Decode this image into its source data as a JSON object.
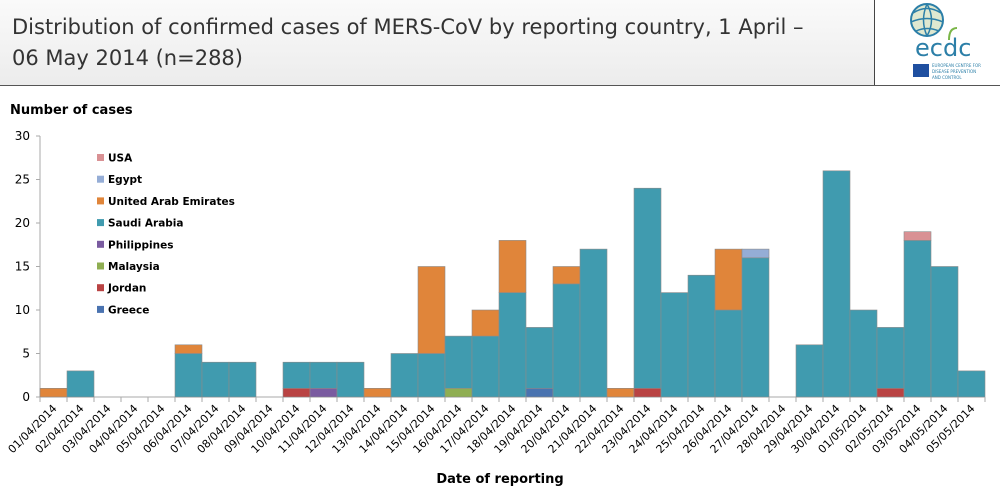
{
  "header": {
    "title": "Distribution of confirmed cases of MERS-CoV by reporting country, 1 April – 06 May 2014 (n=288)",
    "logo_text": "ecdc",
    "logo_subtext": "EUROPEAN CENTRE FOR DISEASE PREVENTION AND CONTROL"
  },
  "chart_data": {
    "type": "bar",
    "stacked": true,
    "title": "Distribution of confirmed cases of MERS-CoV by reporting country, 1 April – 06 May 2014 (n=288)",
    "xlabel": "Date of reporting",
    "ylabel": "Number of cases",
    "ylim": [
      0,
      30
    ],
    "yticks": [
      0,
      5,
      10,
      15,
      20,
      25,
      30
    ],
    "grid": false,
    "legend_position": "top-left",
    "categories": [
      "01/04/2014",
      "02/04/2014",
      "03/04/2014",
      "04/04/2014",
      "05/04/2014",
      "06/04/2014",
      "07/04/2014",
      "08/04/2014",
      "09/04/2014",
      "10/04/2014",
      "11/04/2014",
      "12/04/2014",
      "13/04/2014",
      "14/04/2014",
      "15/04/2014",
      "16/04/2014",
      "17/04/2014",
      "18/04/2014",
      "19/04/2014",
      "20/04/2014",
      "21/04/2014",
      "22/04/2014",
      "23/04/2014",
      "24/04/2014",
      "25/04/2014",
      "26/04/2014",
      "27/04/2014",
      "28/04/2014",
      "29/04/2014",
      "30/04/2014",
      "01/05/2014",
      "02/05/2014",
      "03/05/2014",
      "04/05/2014",
      "05/05/2014"
    ],
    "series": [
      {
        "name": "Greece",
        "color": "#4a73b0",
        "values": [
          0,
          0,
          0,
          0,
          0,
          0,
          0,
          0,
          0,
          0,
          0,
          0,
          0,
          0,
          0,
          0,
          0,
          0,
          1,
          0,
          0,
          0,
          0,
          0,
          0,
          0,
          0,
          0,
          0,
          0,
          0,
          0,
          0,
          0,
          0
        ]
      },
      {
        "name": "Jordan",
        "color": "#b94343",
        "values": [
          0,
          0,
          0,
          0,
          0,
          0,
          0,
          0,
          0,
          1,
          0,
          0,
          0,
          0,
          0,
          0,
          0,
          0,
          0,
          0,
          0,
          0,
          1,
          0,
          0,
          0,
          0,
          0,
          0,
          0,
          0,
          1,
          0,
          0,
          0
        ]
      },
      {
        "name": "Malaysia",
        "color": "#8fae52",
        "values": [
          0,
          0,
          0,
          0,
          0,
          0,
          0,
          0,
          0,
          0,
          0,
          0,
          0,
          0,
          0,
          1,
          0,
          0,
          0,
          0,
          0,
          0,
          0,
          0,
          0,
          0,
          0,
          0,
          0,
          0,
          0,
          0,
          0,
          0,
          0
        ]
      },
      {
        "name": "Philippines",
        "color": "#7a5ba0",
        "values": [
          0,
          0,
          0,
          0,
          0,
          0,
          0,
          0,
          0,
          0,
          1,
          0,
          0,
          0,
          0,
          0,
          0,
          0,
          0,
          0,
          0,
          0,
          0,
          0,
          0,
          0,
          0,
          0,
          0,
          0,
          0,
          0,
          0,
          0,
          0
        ]
      },
      {
        "name": "Saudi Arabia",
        "color": "#409baf",
        "values": [
          0,
          3,
          0,
          0,
          0,
          5,
          4,
          4,
          0,
          3,
          3,
          4,
          0,
          5,
          5,
          6,
          7,
          12,
          7,
          13,
          17,
          0,
          23,
          12,
          14,
          10,
          16,
          0,
          6,
          26,
          10,
          7,
          18,
          15,
          3
        ]
      },
      {
        "name": "United Arab Emirates",
        "color": "#e0853a",
        "values": [
          1,
          0,
          0,
          0,
          0,
          1,
          0,
          0,
          0,
          0,
          0,
          0,
          1,
          0,
          10,
          0,
          3,
          6,
          0,
          2,
          0,
          1,
          0,
          0,
          0,
          7,
          0,
          0,
          0,
          0,
          0,
          0,
          0,
          0,
          0
        ]
      },
      {
        "name": "Egypt",
        "color": "#95add6",
        "values": [
          0,
          0,
          0,
          0,
          0,
          0,
          0,
          0,
          0,
          0,
          0,
          0,
          0,
          0,
          0,
          0,
          0,
          0,
          0,
          0,
          0,
          0,
          0,
          0,
          0,
          0,
          1,
          0,
          0,
          0,
          0,
          0,
          0,
          0,
          0
        ]
      },
      {
        "name": "USA",
        "color": "#d99194",
        "values": [
          0,
          0,
          0,
          0,
          0,
          0,
          0,
          0,
          0,
          0,
          0,
          0,
          0,
          0,
          0,
          0,
          0,
          0,
          0,
          0,
          0,
          0,
          0,
          0,
          0,
          0,
          0,
          0,
          0,
          0,
          0,
          0,
          1,
          0,
          0
        ]
      }
    ]
  }
}
